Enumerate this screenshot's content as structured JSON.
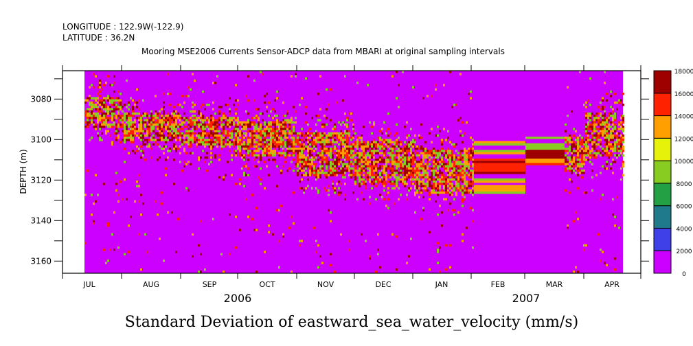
{
  "header": {
    "longitude": "LONGITUDE : 122.9W(-122.9)",
    "latitude": "LATITUDE : 36.2N",
    "subtitle": "Mooring MSE2006 Currents Sensor-ADCP data from MBARI at original sampling intervals"
  },
  "chart_data": {
    "type": "heatmap",
    "title": "Standard Deviation of eastward_sea_water_velocity (mm/s)",
    "subtitle": "Mooring MSE2006 Currents Sensor-ADCP data from MBARI at original sampling intervals",
    "xlabel": "",
    "ylabel": "DEPTH (m)",
    "ylim": [
      3166,
      3066
    ],
    "y_ticks": [
      3080,
      3100,
      3120,
      3140,
      3160
    ],
    "y_tick_labels": [
      "3080",
      "3100",
      "3120",
      "3140",
      "3160"
    ],
    "x_month_labels": [
      "JUL",
      "AUG",
      "SEP",
      "OCT",
      "NOV",
      "DEC",
      "JAN",
      "FEB",
      "MAR",
      "APR"
    ],
    "x_year_labels": [
      "2006",
      "2007"
    ],
    "x_range": [
      "2006-06-23",
      "2007-04-20"
    ],
    "colorbar": {
      "levels": [
        0,
        2000,
        4000,
        6000,
        8000,
        10000,
        12000,
        14000,
        16000,
        18000
      ],
      "labels": [
        "0",
        "2000",
        "4000",
        "6000",
        "8000",
        "10000",
        "12000",
        "14000",
        "16000",
        "18000"
      ],
      "colors": [
        "#cc00ff",
        "#4040e8",
        "#1f7a8c",
        "#22a043",
        "#88cc22",
        "#e6f20a",
        "#ff9f00",
        "#ff2200",
        "#9e0000"
      ]
    },
    "high_variance_band_depth_m": [
      {
        "month": "JUL",
        "top": 3078,
        "bottom": 3094
      },
      {
        "month": "AUG",
        "top": 3086,
        "bottom": 3100
      },
      {
        "month": "SEP",
        "top": 3088,
        "bottom": 3102
      },
      {
        "month": "OCT",
        "top": 3090,
        "bottom": 3108
      },
      {
        "month": "NOV",
        "top": 3096,
        "bottom": 3118
      },
      {
        "month": "DEC",
        "top": 3100,
        "bottom": 3122
      },
      {
        "month": "JAN",
        "top": 3104,
        "bottom": 3126
      },
      {
        "month": "FEB",
        "top": 3100,
        "bottom": 3126
      },
      {
        "month": "MAR",
        "top": 3098,
        "bottom": 3116
      },
      {
        "month": "APR",
        "top": 3086,
        "bottom": 3108
      }
    ],
    "background_value": 1000
  }
}
